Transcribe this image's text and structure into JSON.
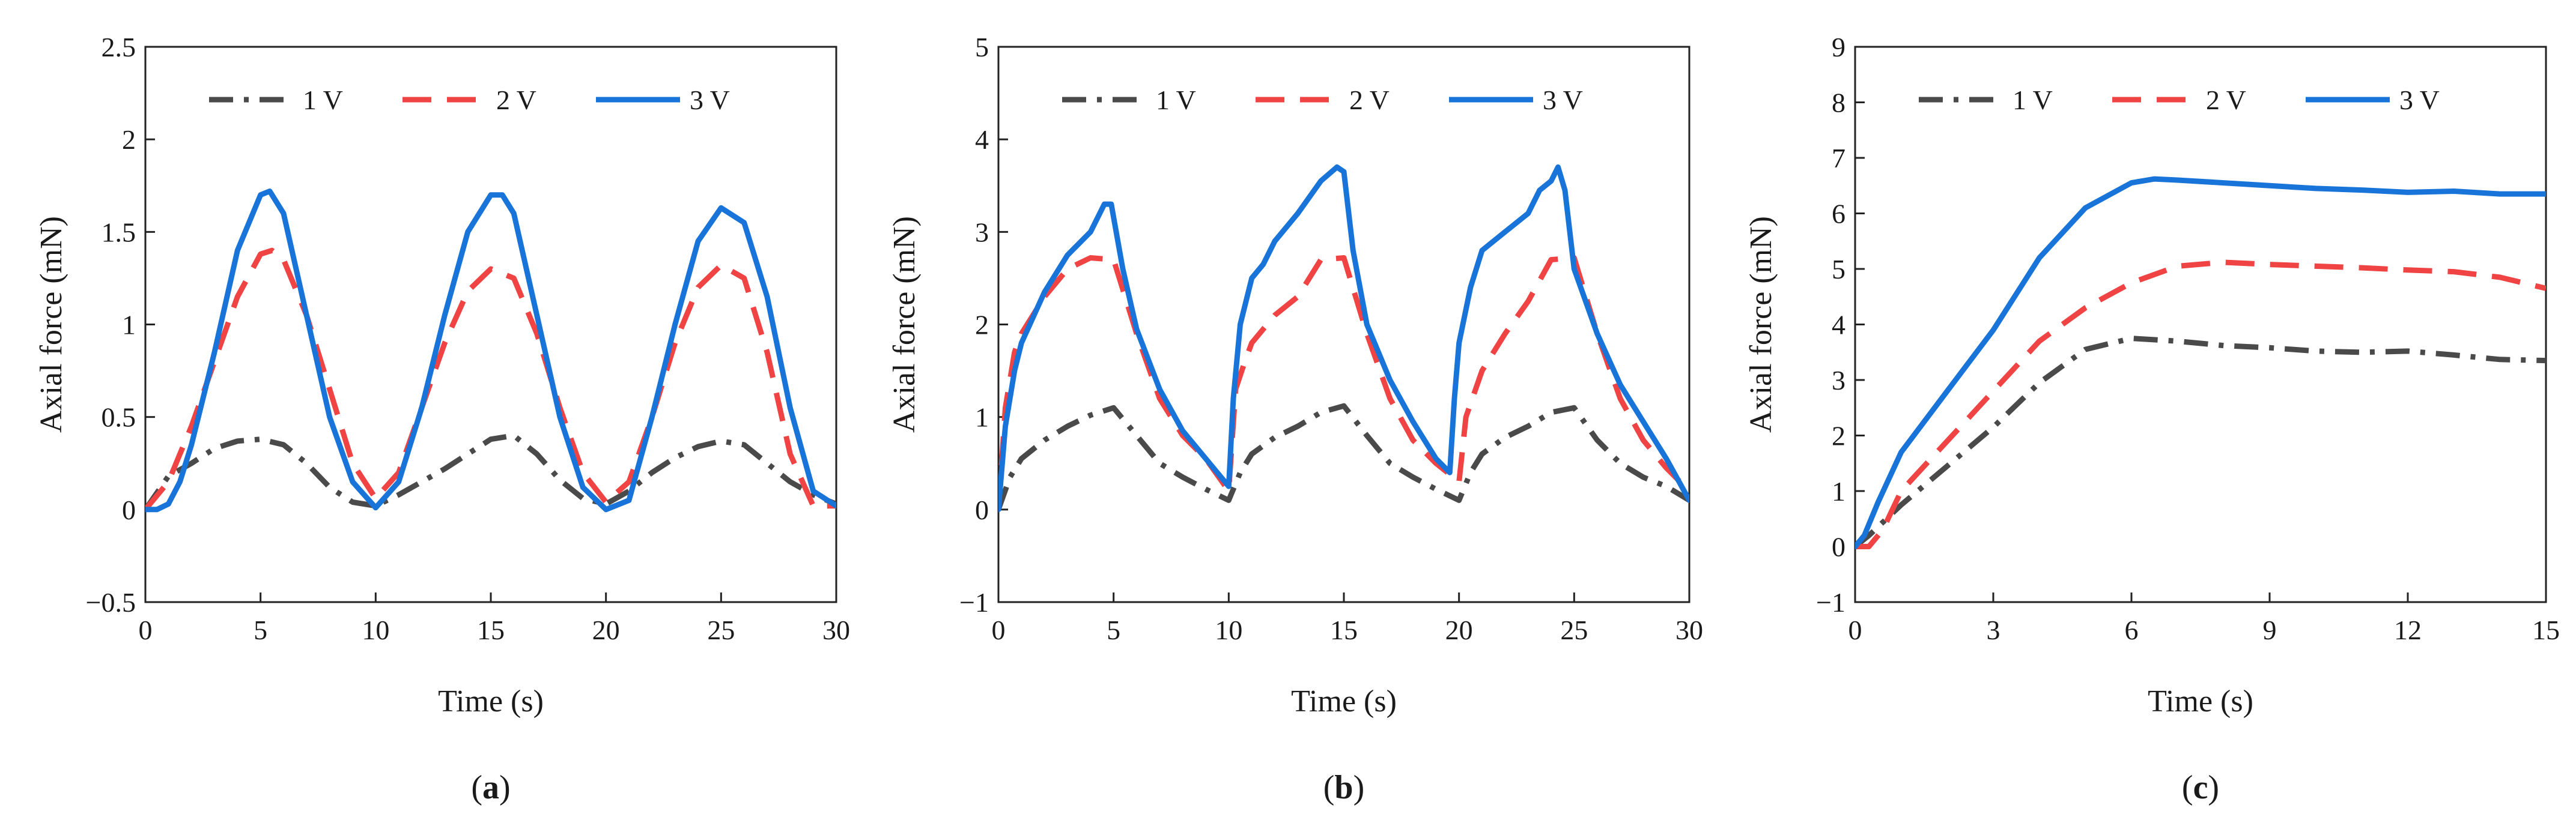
{
  "series_styles": [
    {
      "name": "1 V",
      "color": "#4a4a4a",
      "dash": "dashdot"
    },
    {
      "name": "2 V",
      "color": "#f04343",
      "dash": "dashed"
    },
    {
      "name": "3 V",
      "color": "#1874d8",
      "dash": "solid"
    }
  ],
  "chart_data": [
    {
      "type": "line",
      "panel_label": "a",
      "xlabel": "Time (s)",
      "ylabel": "Axial force (mN)",
      "xlim": [
        0,
        30
      ],
      "ylim": [
        -0.5,
        2.5
      ],
      "xticks": [
        0,
        5,
        10,
        15,
        20,
        25,
        30
      ],
      "yticks": [
        -0.5,
        0,
        0.5,
        1,
        1.5,
        2,
        2.5
      ],
      "xtick_labels": [
        "0",
        "5",
        "10",
        "15",
        "20",
        "25",
        "30"
      ],
      "ytick_labels": [
        "−0.5",
        "0",
        "0.5",
        "1",
        "1.5",
        "2",
        "2.5"
      ],
      "legend_position": "top",
      "series": [
        {
          "name": "1 V",
          "x": [
            0,
            1,
            2,
            3,
            4,
            5,
            6,
            7,
            8,
            9,
            10,
            11,
            12,
            13,
            14,
            15,
            16,
            17,
            18,
            19,
            20,
            21,
            22,
            23,
            24,
            25,
            26,
            27,
            28,
            29,
            30
          ],
          "y": [
            0,
            0.18,
            0.25,
            0.33,
            0.37,
            0.38,
            0.35,
            0.25,
            0.12,
            0.04,
            0.02,
            0.08,
            0.15,
            0.22,
            0.3,
            0.38,
            0.4,
            0.3,
            0.16,
            0.06,
            0.03,
            0.1,
            0.2,
            0.28,
            0.34,
            0.37,
            0.35,
            0.25,
            0.15,
            0.08,
            0.03
          ]
        },
        {
          "name": "2 V",
          "x": [
            0,
            1,
            2,
            3,
            4,
            5,
            5.5,
            6,
            7,
            8,
            9,
            10,
            11,
            12,
            13,
            14,
            15,
            16,
            17,
            18,
            19,
            20,
            21,
            22,
            23,
            24,
            25,
            26,
            27,
            28,
            29,
            30
          ],
          "y": [
            0,
            0.15,
            0.45,
            0.8,
            1.15,
            1.38,
            1.4,
            1.35,
            1.05,
            0.65,
            0.25,
            0.06,
            0.2,
            0.55,
            0.9,
            1.18,
            1.3,
            1.25,
            0.95,
            0.55,
            0.2,
            0.04,
            0.15,
            0.5,
            0.9,
            1.2,
            1.32,
            1.25,
            0.85,
            0.3,
            0.02,
            0.02
          ]
        },
        {
          "name": "3 V",
          "x": [
            0,
            0.5,
            1,
            1.5,
            2,
            3,
            4,
            5,
            5.4,
            6,
            7,
            8,
            9,
            10,
            11,
            12,
            13,
            14,
            15,
            15.5,
            16,
            17,
            18,
            19,
            20,
            21,
            22,
            23,
            24,
            25,
            26,
            27,
            28,
            29,
            30
          ],
          "y": [
            0,
            0,
            0.03,
            0.15,
            0.35,
            0.85,
            1.4,
            1.7,
            1.72,
            1.6,
            1.05,
            0.5,
            0.15,
            0.01,
            0.15,
            0.55,
            1.05,
            1.5,
            1.7,
            1.7,
            1.6,
            1.05,
            0.5,
            0.12,
            0,
            0.05,
            0.5,
            1.0,
            1.45,
            1.63,
            1.55,
            1.15,
            0.55,
            0.1,
            0.02
          ]
        }
      ]
    },
    {
      "type": "line",
      "panel_label": "b",
      "xlabel": "Time (s)",
      "ylabel": "Axial force (mN)",
      "xlim": [
        0,
        30
      ],
      "ylim": [
        -1,
        5
      ],
      "xticks": [
        0,
        5,
        10,
        15,
        20,
        25,
        30
      ],
      "yticks": [
        -1,
        0,
        1,
        2,
        3,
        4,
        5
      ],
      "xtick_labels": [
        "0",
        "5",
        "10",
        "15",
        "20",
        "25",
        "30"
      ],
      "ytick_labels": [
        "−1",
        "0",
        "1",
        "2",
        "3",
        "4",
        "5"
      ],
      "legend_position": "top",
      "series": [
        {
          "name": "1 V",
          "x": [
            0,
            0.5,
            1,
            2,
            3,
            4,
            5,
            6,
            7,
            8,
            9,
            10,
            10.5,
            11,
            12,
            13,
            14,
            15,
            16,
            17,
            18,
            19,
            20,
            20.5,
            21,
            22,
            23,
            24,
            25,
            26,
            27,
            28,
            29,
            30
          ],
          "y": [
            0,
            0.35,
            0.55,
            0.75,
            0.9,
            1.02,
            1.1,
            0.8,
            0.5,
            0.35,
            0.22,
            0.1,
            0.4,
            0.6,
            0.78,
            0.9,
            1.05,
            1.12,
            0.8,
            0.5,
            0.35,
            0.22,
            0.1,
            0.4,
            0.6,
            0.78,
            0.9,
            1.05,
            1.1,
            0.75,
            0.5,
            0.35,
            0.25,
            0.1
          ]
        },
        {
          "name": "2 V",
          "x": [
            0,
            0.3,
            0.7,
            1,
            2,
            3,
            4,
            5,
            6,
            7,
            8,
            9,
            10,
            10.3,
            10.7,
            11,
            12,
            13,
            14,
            15,
            16,
            17,
            18,
            19,
            20,
            20.3,
            21,
            22,
            23,
            24,
            25,
            26,
            27,
            28,
            29,
            30
          ],
          "y": [
            0,
            1.1,
            1.7,
            1.9,
            2.3,
            2.6,
            2.72,
            2.7,
            1.9,
            1.2,
            0.8,
            0.55,
            0.2,
            1.3,
            1.6,
            1.8,
            2.1,
            2.3,
            2.7,
            2.72,
            1.9,
            1.2,
            0.75,
            0.5,
            0.3,
            1.0,
            1.5,
            1.9,
            2.25,
            2.7,
            2.72,
            1.9,
            1.2,
            0.75,
            0.45,
            0.2
          ]
        },
        {
          "name": "3 V",
          "x": [
            0,
            0.3,
            0.7,
            1,
            2,
            3,
            4,
            4.6,
            4.9,
            5.4,
            6,
            7,
            8,
            9,
            10,
            10.2,
            10.5,
            11,
            11.5,
            12,
            13,
            14,
            14.7,
            15,
            15.4,
            16,
            17,
            18,
            19,
            19.6,
            19.8,
            20,
            20.5,
            21,
            22,
            23,
            23.5,
            24,
            24.3,
            24.6,
            25,
            26,
            27,
            28,
            29,
            30
          ],
          "y": [
            0,
            0.9,
            1.5,
            1.8,
            2.35,
            2.75,
            3.0,
            3.3,
            3.3,
            2.6,
            1.95,
            1.3,
            0.85,
            0.55,
            0.25,
            1.2,
            2.0,
            2.5,
            2.65,
            2.9,
            3.2,
            3.55,
            3.7,
            3.65,
            2.8,
            2.0,
            1.4,
            0.95,
            0.55,
            0.4,
            1.2,
            1.8,
            2.4,
            2.8,
            3.0,
            3.2,
            3.45,
            3.55,
            3.7,
            3.45,
            2.6,
            1.9,
            1.35,
            0.95,
            0.55,
            0.1
          ]
        }
      ]
    },
    {
      "type": "line",
      "panel_label": "c",
      "xlabel": "Time (s)",
      "ylabel": "Axial force (mN)",
      "xlim": [
        0,
        15
      ],
      "ylim": [
        -1,
        9
      ],
      "xticks": [
        0,
        3,
        6,
        9,
        12,
        15
      ],
      "yticks": [
        -1,
        0,
        1,
        2,
        3,
        4,
        5,
        6,
        7,
        8,
        9
      ],
      "xtick_labels": [
        "0",
        "3",
        "6",
        "9",
        "12",
        "15"
      ],
      "ytick_labels": [
        "−1",
        "0",
        "1",
        "2",
        "3",
        "4",
        "5",
        "6",
        "7",
        "8",
        "9"
      ],
      "legend_position": "top",
      "series": [
        {
          "name": "1 V",
          "x": [
            0,
            0.3,
            1,
            2,
            3,
            4,
            5,
            6,
            7,
            8,
            9,
            10,
            11,
            12,
            13,
            14,
            15
          ],
          "y": [
            0,
            0.2,
            0.75,
            1.45,
            2.15,
            2.95,
            3.55,
            3.75,
            3.7,
            3.62,
            3.58,
            3.52,
            3.5,
            3.52,
            3.45,
            3.37,
            3.35
          ]
        },
        {
          "name": "2 V",
          "x": [
            0,
            0.3,
            0.6,
            1,
            2,
            3,
            4,
            5,
            6,
            7,
            8,
            9,
            10,
            11,
            12,
            13,
            14,
            15
          ],
          "y": [
            0,
            0.0,
            0.3,
            1.0,
            1.9,
            2.8,
            3.7,
            4.3,
            4.75,
            5.05,
            5.12,
            5.08,
            5.05,
            5.02,
            4.98,
            4.95,
            4.85,
            4.65
          ]
        },
        {
          "name": "3 V",
          "x": [
            0,
            0.2,
            0.5,
            1,
            2,
            3,
            4,
            5,
            6,
            6.5,
            7,
            8,
            9,
            10,
            11,
            12,
            13,
            14,
            15
          ],
          "y": [
            0,
            0.2,
            0.8,
            1.7,
            2.8,
            3.9,
            5.2,
            6.1,
            6.55,
            6.62,
            6.6,
            6.55,
            6.5,
            6.45,
            6.42,
            6.38,
            6.4,
            6.35,
            6.35
          ]
        }
      ]
    }
  ]
}
